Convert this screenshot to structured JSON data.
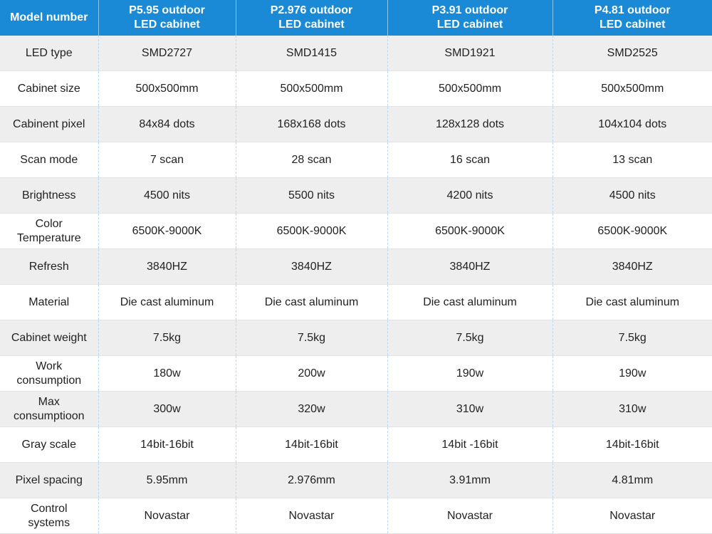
{
  "table": {
    "headers": [
      "Model number",
      "P5.95 outdoor\nLED cabinet",
      "P2.976 outdoor\nLED cabinet",
      "P3.91 outdoor\nLED cabinet",
      "P4.81 outdoor\nLED cabinet"
    ],
    "rows": [
      [
        "LED type",
        "SMD2727",
        "SMD1415",
        "SMD1921",
        "SMD2525"
      ],
      [
        "Cabinet size",
        "500x500mm",
        "500x500mm",
        "500x500mm",
        "500x500mm"
      ],
      [
        "Cabinent pixel",
        "84x84 dots",
        "168x168 dots",
        "128x128 dots",
        "104x104 dots"
      ],
      [
        "Scan mode",
        "7 scan",
        "28 scan",
        "16 scan",
        "13 scan"
      ],
      [
        "Brightness",
        "4500 nits",
        "5500 nits",
        "4200 nits",
        "4500 nits"
      ],
      [
        "Color\nTemperature",
        "6500K-9000K",
        "6500K-9000K",
        "6500K-9000K",
        "6500K-9000K"
      ],
      [
        "Refresh",
        "3840HZ",
        "3840HZ",
        "3840HZ",
        "3840HZ"
      ],
      [
        "Material",
        "Die cast aluminum",
        "Die cast aluminum",
        "Die cast aluminum",
        "Die cast aluminum"
      ],
      [
        "Cabinet weight",
        "7.5kg",
        "7.5kg",
        "7.5kg",
        "7.5kg"
      ],
      [
        "Work\nconsumption",
        "180w",
        "200w",
        "190w",
        "190w"
      ],
      [
        "Max\nconsumptioon",
        "300w",
        "320w",
        "310w",
        "310w"
      ],
      [
        "Gray scale",
        "14bit-16bit",
        "14bit-16bit",
        "14bit -16bit",
        "14bit-16bit"
      ],
      [
        "Pixel spacing",
        "5.95mm",
        "2.976mm",
        "3.91mm",
        "4.81mm"
      ],
      [
        "Control\nsystems",
        "Novastar",
        "Novastar",
        "Novastar",
        "Novastar"
      ]
    ]
  },
  "colors": {
    "header_bg": "#1a8ad6",
    "header_text": "#ffffff",
    "row_alt_bg": "#eeeeee",
    "row_bg": "#ffffff"
  }
}
